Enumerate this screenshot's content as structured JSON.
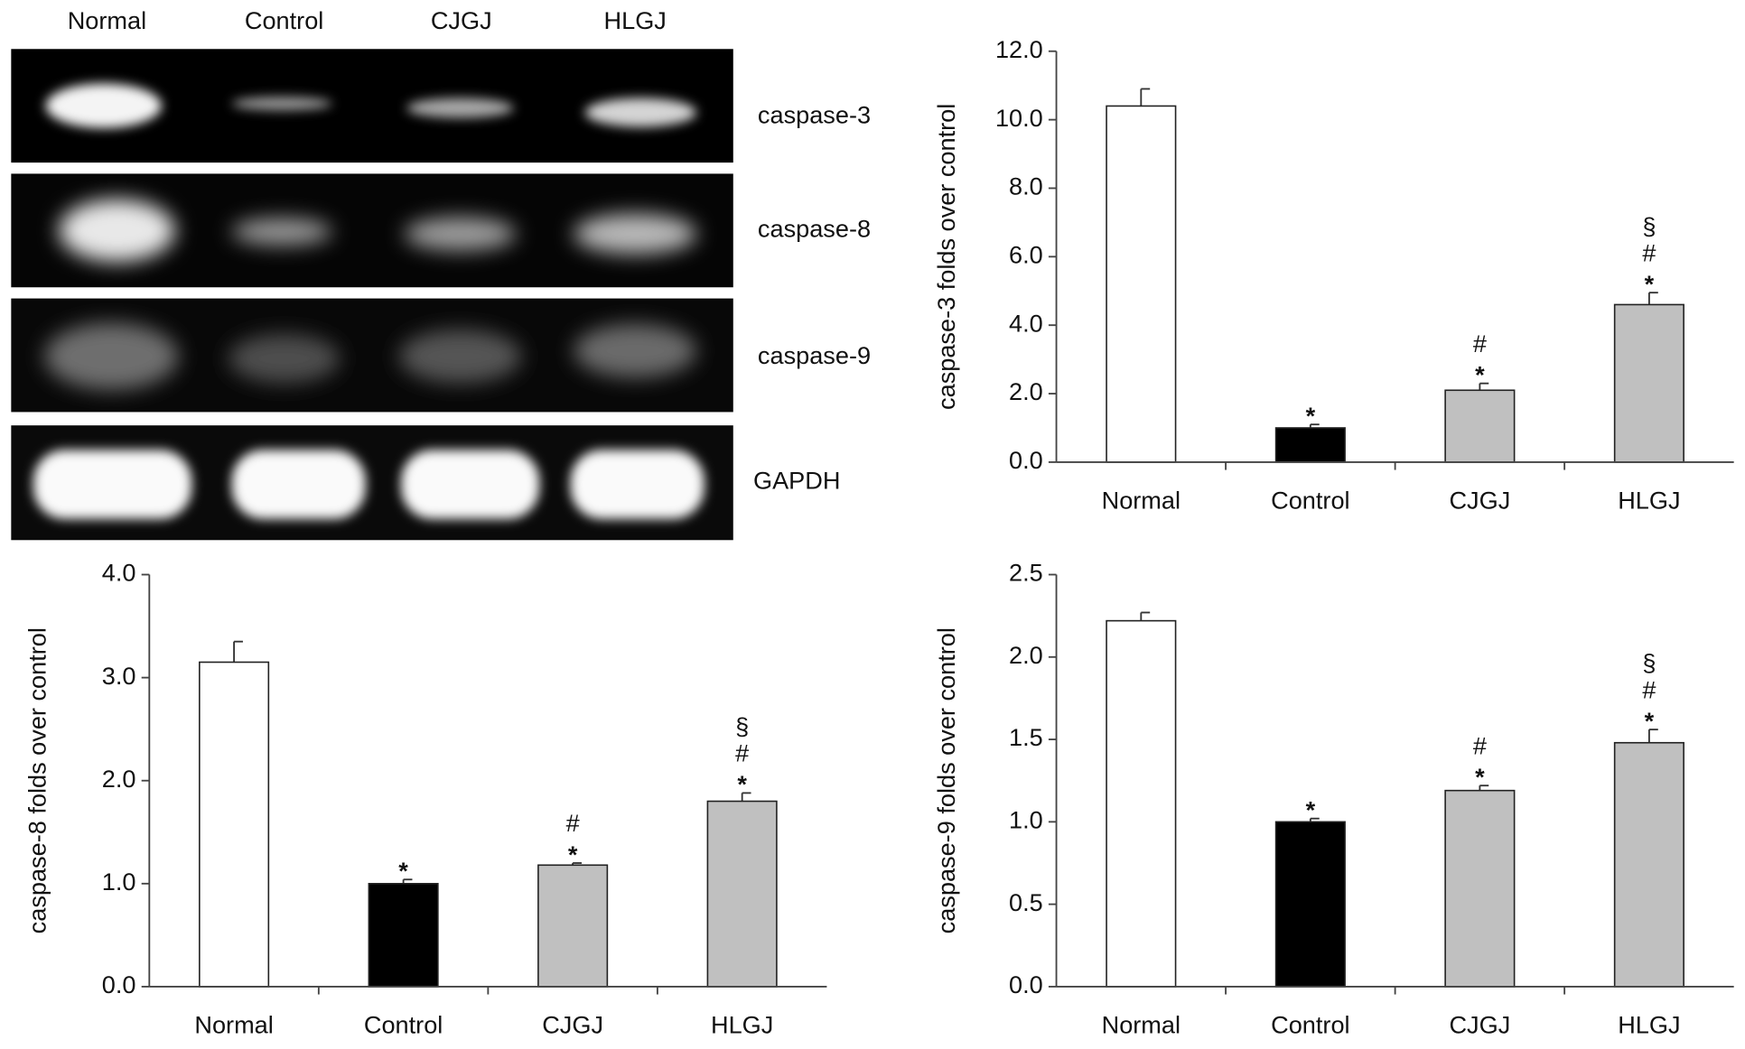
{
  "gel": {
    "lanes": [
      "Normal",
      "Control",
      "CJGJ",
      "HLGJ"
    ],
    "bands": [
      "caspase-3",
      "caspase-8",
      "caspase-9",
      "GAPDH"
    ]
  },
  "chart_data": [
    {
      "type": "bar",
      "y_label": "caspase-3 folds over control",
      "categories": [
        "Normal",
        "Control",
        "CJGJ",
        "HLGJ"
      ],
      "values": [
        10.4,
        1.0,
        2.1,
        4.6
      ],
      "errors": [
        0.5,
        0.1,
        0.2,
        0.35
      ],
      "colors": [
        "#ffffff",
        "#000000",
        "#c0c0c0",
        "#c0c0c0"
      ],
      "annotations": [
        [],
        [
          "*"
        ],
        [
          "#",
          "*"
        ],
        [
          "§",
          "#",
          "*"
        ]
      ],
      "ylim": [
        0,
        12
      ],
      "yticks": [
        {
          "value": 0,
          "label": "0.0"
        },
        {
          "value": 2,
          "label": "2.0"
        },
        {
          "value": 4,
          "label": "4.0"
        },
        {
          "value": 6,
          "label": "6.0"
        },
        {
          "value": 8,
          "label": "8.0"
        },
        {
          "value": 10,
          "label": "10.0"
        },
        {
          "value": 12,
          "label": "12.0"
        }
      ]
    },
    {
      "type": "bar",
      "y_label": "caspase-8 folds over control",
      "categories": [
        "Normal",
        "Control",
        "CJGJ",
        "HLGJ"
      ],
      "values": [
        3.15,
        1.0,
        1.18,
        1.8
      ],
      "errors": [
        0.2,
        0.04,
        0.02,
        0.08
      ],
      "colors": [
        "#ffffff",
        "#000000",
        "#c0c0c0",
        "#c0c0c0"
      ],
      "annotations": [
        [],
        [
          "*"
        ],
        [
          "#",
          "*"
        ],
        [
          "§",
          "#",
          "*"
        ]
      ],
      "ylim": [
        0,
        4
      ],
      "yticks": [
        {
          "value": 0,
          "label": "0.0"
        },
        {
          "value": 1,
          "label": "1.0"
        },
        {
          "value": 2,
          "label": "2.0"
        },
        {
          "value": 3,
          "label": "3.0"
        },
        {
          "value": 4,
          "label": "4.0"
        }
      ]
    },
    {
      "type": "bar",
      "y_label": "caspase-9 folds over control",
      "categories": [
        "Normal",
        "Control",
        "CJGJ",
        "HLGJ"
      ],
      "values": [
        2.22,
        1.0,
        1.19,
        1.48
      ],
      "errors": [
        0.05,
        0.02,
        0.03,
        0.08
      ],
      "colors": [
        "#ffffff",
        "#000000",
        "#c0c0c0",
        "#c0c0c0"
      ],
      "annotations": [
        [],
        [
          "*"
        ],
        [
          "#",
          "*"
        ],
        [
          "§",
          "#",
          "*"
        ]
      ],
      "ylim": [
        0,
        2.5
      ],
      "yticks": [
        {
          "value": 0,
          "label": "0.0"
        },
        {
          "value": 0.5,
          "label": "0.5"
        },
        {
          "value": 1,
          "label": "1.0"
        },
        {
          "value": 1.5,
          "label": "1.5"
        },
        {
          "value": 2,
          "label": "2.0"
        },
        {
          "value": 2.5,
          "label": "2.5"
        }
      ]
    }
  ]
}
